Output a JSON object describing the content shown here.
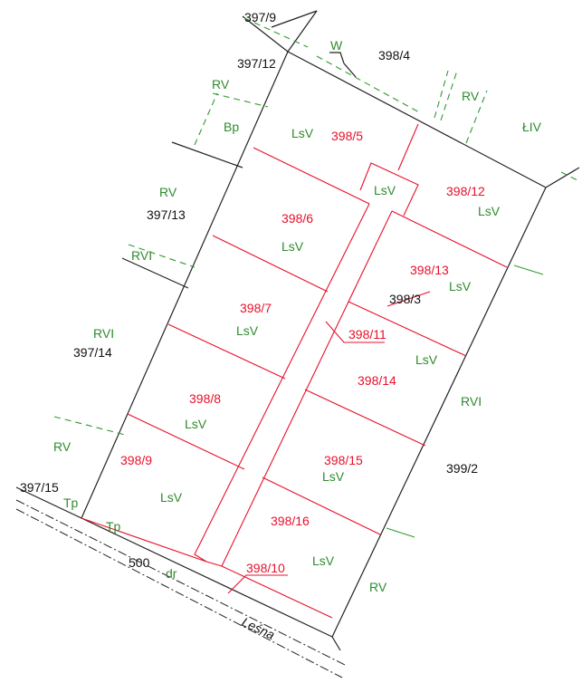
{
  "map": {
    "labels": {
      "p397_9": "397/9",
      "p397_12": "397/12",
      "p397_13": "397/13",
      "p397_14": "397/14",
      "p397_15": "397/15",
      "p398_4": "398/4",
      "p398_3": "398/3",
      "p399_2": "399/2",
      "p500": "500",
      "dr": "dr",
      "street": "Leśna",
      "p398_5": "398/5",
      "p398_6": "398/6",
      "p398_7": "398/7",
      "p398_8": "398/8",
      "p398_9": "398/9",
      "p398_10": "398/10",
      "p398_11": "398/11",
      "p398_12": "398/12",
      "p398_13": "398/13",
      "p398_14": "398/14",
      "p398_15": "398/15",
      "p398_16": "398/16",
      "W": "W",
      "RV_1": "RV",
      "RV_2": "RV",
      "RV_3": "RV",
      "RV_4": "RV",
      "RV_5": "RV",
      "RVI_1": "RVI",
      "RVI_2": "RVI",
      "RVI_3": "RVI",
      "Bp": "Bp",
      "LIV": "ŁIV",
      "Tp_1": "Tp",
      "Tp_2": "Tp",
      "LsV_5": "LsV",
      "LsV_road": "LsV",
      "LsV_12": "LsV",
      "LsV_6": "LsV",
      "LsV_13": "LsV",
      "LsV_7": "LsV",
      "LsV_14": "LsV",
      "LsV_8": "LsV",
      "LsV_15": "LsV",
      "LsV_9": "LsV",
      "LsV_16": "LsV"
    },
    "colors": {
      "parcel_number_new": "#e8102a",
      "land_use_class": "#2e8b2e",
      "parcel_number_existing": "#111111"
    }
  }
}
